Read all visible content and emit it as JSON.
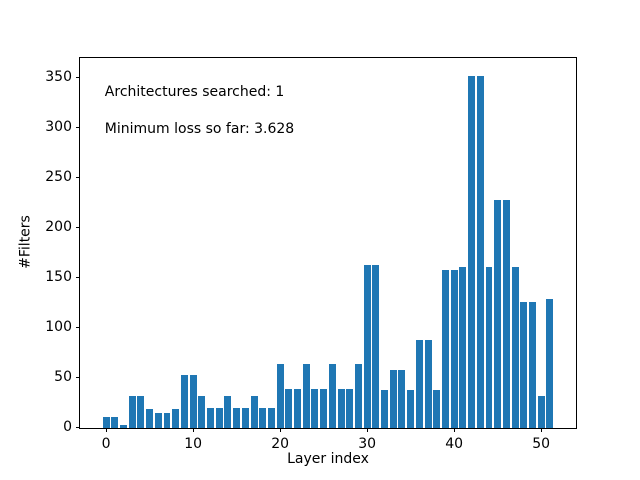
{
  "chart_data": {
    "type": "bar",
    "title": "",
    "xlabel": "Layer index",
    "ylabel": "#Filters",
    "annotations": [
      "Architectures searched: 1",
      "Minimum loss so far: 3.628"
    ],
    "categories": [
      0,
      1,
      2,
      3,
      4,
      5,
      6,
      7,
      8,
      9,
      10,
      11,
      12,
      13,
      14,
      15,
      16,
      17,
      18,
      19,
      20,
      21,
      22,
      23,
      24,
      25,
      26,
      27,
      28,
      29,
      30,
      31,
      32,
      33,
      34,
      35,
      36,
      37,
      38,
      39,
      40,
      41,
      42,
      43,
      44,
      45,
      46,
      47,
      48,
      49,
      50,
      51
    ],
    "values": [
      11,
      11,
      3,
      32,
      32,
      19,
      15,
      15,
      19,
      53,
      53,
      32,
      20,
      20,
      32,
      20,
      20,
      32,
      20,
      20,
      64,
      39,
      39,
      64,
      39,
      39,
      64,
      39,
      39,
      64,
      163,
      163,
      38,
      58,
      58,
      38,
      88,
      88,
      38,
      158,
      158,
      161,
      352,
      352,
      161,
      228,
      228,
      161,
      126,
      126,
      32,
      129
    ],
    "xticks": [
      0,
      10,
      20,
      30,
      40,
      50
    ],
    "yticks": [
      0,
      50,
      100,
      150,
      200,
      250,
      300,
      350
    ],
    "xlim": [
      -3.0,
      54.0
    ],
    "ylim": [
      0,
      369.6
    ],
    "grid": false,
    "legend": null,
    "bar_width": 0.8,
    "bar_color": "#1f77b4",
    "text_color": "#000000",
    "background_color": "#ffffff"
  }
}
